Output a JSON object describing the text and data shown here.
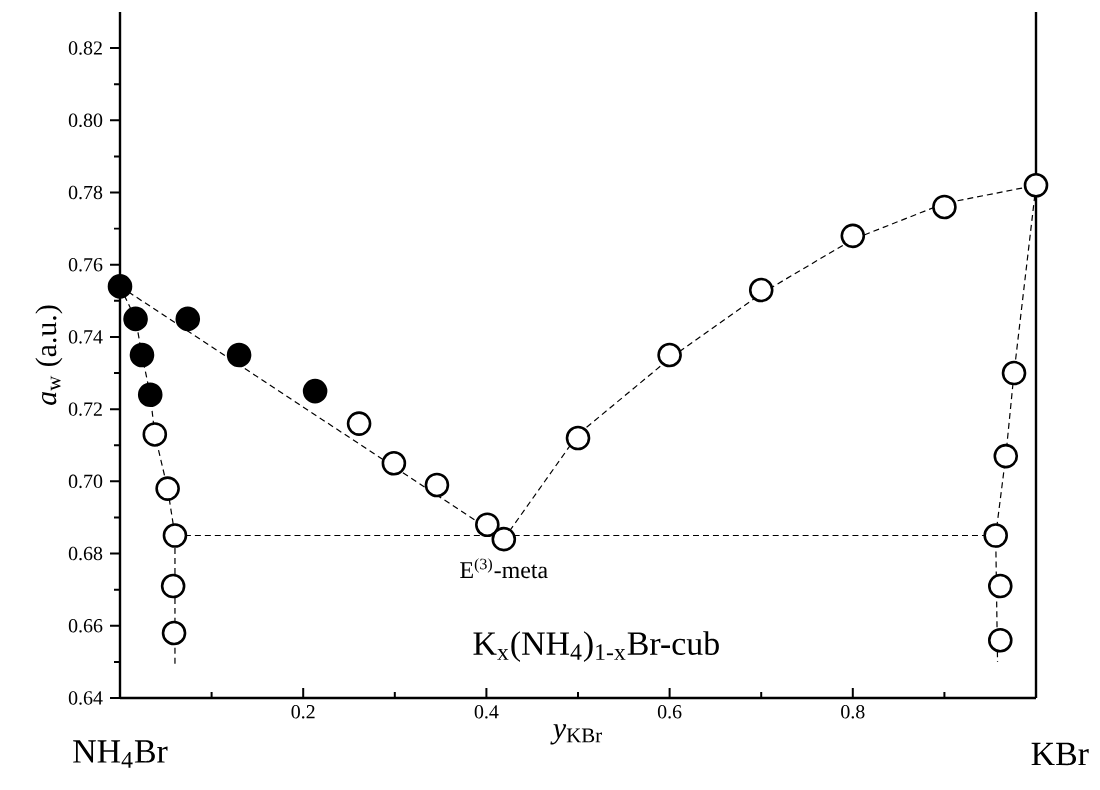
{
  "chart_data": {
    "type": "scatter",
    "xlabel": "*y*$_{KBr}$",
    "ylabel": "*a*$_{w}$ (a.u.)",
    "annotations": [
      {
        "text": "E$^{(3)}$-meta",
        "x": 0.419,
        "y": 0.684
      },
      "K$_{x}$(NH$_{4}$)$_{1-x}$Br-cub",
      "NH$_{4}$Br",
      "KBr"
    ],
    "xlim": [
      0,
      1
    ],
    "ylim": [
      0.64,
      0.83
    ],
    "xticks": [
      {
        "value": 0.1,
        "label": null
      },
      0.2,
      {
        "value": 0.3,
        "label": null
      },
      0.4,
      {
        "value": 0.5,
        "label": null
      },
      0.6,
      {
        "value": 0.7,
        "label": null
      },
      0.8,
      {
        "value": 0.9,
        "label": null
      }
    ],
    "yticks": [
      {
        "value": 0.64,
        "label": "0.64"
      },
      {
        "value": 0.65,
        "label": null
      },
      {
        "value": 0.66,
        "label": "0.66"
      },
      {
        "value": 0.67,
        "label": null
      },
      {
        "value": 0.68,
        "label": "0.68"
      },
      {
        "value": 0.69,
        "label": null
      },
      {
        "value": 0.7,
        "label": "0.70"
      },
      {
        "value": 0.71,
        "label": null
      },
      {
        "value": 0.72,
        "label": "0.72"
      },
      {
        "value": 0.73,
        "label": null
      },
      {
        "value": 0.74,
        "label": "0.74"
      },
      {
        "value": 0.75,
        "label": null
      },
      {
        "value": 0.76,
        "label": "0.76"
      },
      {
        "value": 0.77,
        "label": null
      },
      {
        "value": 0.78,
        "label": "0.78"
      },
      {
        "value": 0.79,
        "label": null
      },
      {
        "value": 0.8,
        "label": "0.80"
      },
      {
        "value": 0.81,
        "label": null
      },
      {
        "value": 0.82,
        "label": "0.82"
      }
    ],
    "grid": false,
    "series": [
      {
        "type": "line",
        "color": "#000000",
        "marker": "none",
        "line_style": "dashed",
        "x": [
          0,
          0.419
        ],
        "values": [
          0.754,
          0.684
        ]
      },
      {
        "type": "line",
        "color": "#000000",
        "marker": "none",
        "line_style": "dashed",
        "x": [
          0.419,
          0.5,
          0.6,
          0.7,
          0.8,
          0.9,
          1.0
        ],
        "values": [
          0.684,
          0.713,
          0.734,
          0.752,
          0.767,
          0.777,
          0.782
        ]
      },
      {
        "type": "line",
        "color": "#000000",
        "marker": "none",
        "line_style": "dashed",
        "x": [
          0,
          0.017,
          0.024,
          0.033,
          0.038,
          0.052,
          0.06,
          0.06
        ],
        "values": [
          0.754,
          0.745,
          0.735,
          0.724,
          0.713,
          0.698,
          0.685,
          0.649
        ]
      },
      {
        "type": "line",
        "color": "#000000",
        "marker": "none",
        "line_style": "dashed",
        "x": [
          1.0,
          0.976,
          0.967,
          0.956,
          0.958
        ],
        "values": [
          0.782,
          0.73,
          0.707,
          0.685,
          0.65
        ]
      },
      {
        "type": "line",
        "color": "#000000",
        "marker": "none",
        "line_style": "dashed",
        "x": [
          0.06,
          0.956
        ],
        "values": [
          0.685,
          0.685
        ]
      },
      {
        "color": "#000000",
        "marker": "circle",
        "x": [
          0,
          0.017,
          0.024,
          0.033,
          0.074,
          0.13,
          0.213
        ],
        "values": [
          0.754,
          0.745,
          0.735,
          0.724,
          0.745,
          0.735,
          0.725
        ]
      },
      {
        "color": "#ffffff",
        "marker": "circle",
        "x": [
          0.038,
          0.052,
          0.06,
          0.058,
          0.059,
          0.261,
          0.299,
          0.346,
          0.401,
          0.419,
          0.5,
          0.6,
          0.7,
          0.8,
          0.9,
          1.0,
          0.976,
          0.967,
          0.956,
          0.961,
          0.961
        ],
        "values": [
          0.713,
          0.698,
          0.685,
          0.671,
          0.658,
          0.716,
          0.705,
          0.699,
          0.688,
          0.684,
          0.712,
          0.735,
          0.753,
          0.768,
          0.776,
          0.782,
          0.73,
          0.707,
          0.685,
          0.671,
          0.656
        ]
      }
    ]
  }
}
